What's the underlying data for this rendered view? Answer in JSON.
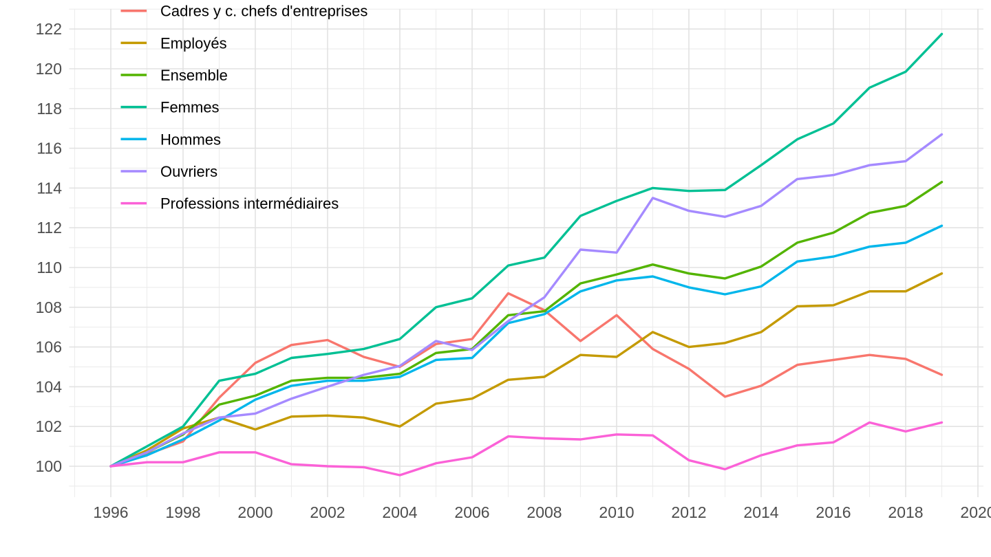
{
  "chart_data": {
    "type": "line",
    "title": "",
    "xlabel": "",
    "ylabel": "",
    "grid": "major-and-minor",
    "legend_position": "top-left-inside",
    "background_color": "#FFFFFF",
    "grid_major_color": "#E2E2E2",
    "grid_minor_color": "#EDEDED",
    "axis_text_color": "#4D4D4D",
    "xlim": [
      1994.85,
      2020.15
    ],
    "ylim": [
      98.4,
      122.9
    ],
    "x_ticks": [
      1996,
      1998,
      2000,
      2002,
      2004,
      2006,
      2008,
      2010,
      2012,
      2014,
      2016,
      2018,
      2020
    ],
    "y_ticks": [
      100,
      102,
      104,
      106,
      108,
      110,
      112,
      114,
      116,
      118,
      120,
      122
    ],
    "x": [
      1996,
      1997,
      1998,
      1999,
      2000,
      2001,
      2002,
      2003,
      2004,
      2005,
      2006,
      2007,
      2008,
      2009,
      2010,
      2011,
      2012,
      2013,
      2014,
      2015,
      2016,
      2017,
      2018,
      2019
    ],
    "series": [
      {
        "name": "Cadres y c. chefs d'entreprises",
        "color": "#F8766D",
        "values": [
          100,
          100.6,
          101.25,
          103.45,
          105.2,
          106.1,
          106.35,
          105.5,
          105,
          106.15,
          106.4,
          108.7,
          107.85,
          106.3,
          107.6,
          105.9,
          104.9,
          103.5,
          104.05,
          105.1,
          105.35,
          105.6,
          105.4,
          104.6
        ]
      },
      {
        "name": "Employés",
        "color": "#C49A00",
        "values": [
          100,
          100.8,
          101.9,
          102.45,
          101.85,
          102.5,
          102.55,
          102.45,
          102,
          103.15,
          103.4,
          104.35,
          104.5,
          105.6,
          105.5,
          106.75,
          106,
          106.2,
          106.75,
          108.05,
          108.1,
          108.8,
          108.8,
          109.7
        ]
      },
      {
        "name": "Ensemble",
        "color": "#53B400",
        "values": [
          100,
          100.7,
          101.6,
          103.1,
          103.55,
          104.3,
          104.45,
          104.45,
          104.65,
          105.7,
          105.9,
          107.6,
          107.8,
          109.2,
          109.65,
          110.15,
          109.7,
          109.45,
          110.05,
          111.25,
          111.75,
          112.75,
          113.1,
          114.3
        ]
      },
      {
        "name": "Femmes",
        "color": "#00C094",
        "values": [
          100,
          101,
          102,
          104.3,
          104.65,
          105.45,
          105.65,
          105.9,
          106.4,
          108,
          108.45,
          110.1,
          110.5,
          112.6,
          113.35,
          114,
          113.85,
          113.9,
          115.15,
          116.45,
          117.25,
          119.05,
          119.85,
          121.75
        ]
      },
      {
        "name": "Hommes",
        "color": "#00B6EB",
        "values": [
          100,
          100.55,
          101.35,
          102.3,
          103.35,
          104.05,
          104.3,
          104.3,
          104.5,
          105.35,
          105.45,
          107.2,
          107.65,
          108.8,
          109.35,
          109.55,
          109,
          108.65,
          109.05,
          110.3,
          110.55,
          111.05,
          111.25,
          112.1
        ]
      },
      {
        "name": "Ouvriers",
        "color": "#A58AFF",
        "values": [
          100,
          100.7,
          101.65,
          102.45,
          102.65,
          103.4,
          104,
          104.6,
          105.05,
          106.3,
          105.85,
          107.3,
          108.5,
          110.9,
          110.75,
          113.5,
          112.85,
          112.55,
          113.1,
          114.45,
          114.65,
          115.15,
          115.35,
          116.7
        ]
      },
      {
        "name": "Professions intermédiaires",
        "color": "#FB61D7",
        "values": [
          100,
          100.2,
          100.2,
          100.7,
          100.7,
          100.1,
          100,
          99.95,
          99.55,
          100.15,
          100.45,
          101.5,
          101.4,
          101.35,
          101.6,
          101.55,
          100.3,
          99.85,
          100.55,
          101.05,
          101.2,
          102.2,
          101.75,
          102.2
        ]
      }
    ]
  }
}
